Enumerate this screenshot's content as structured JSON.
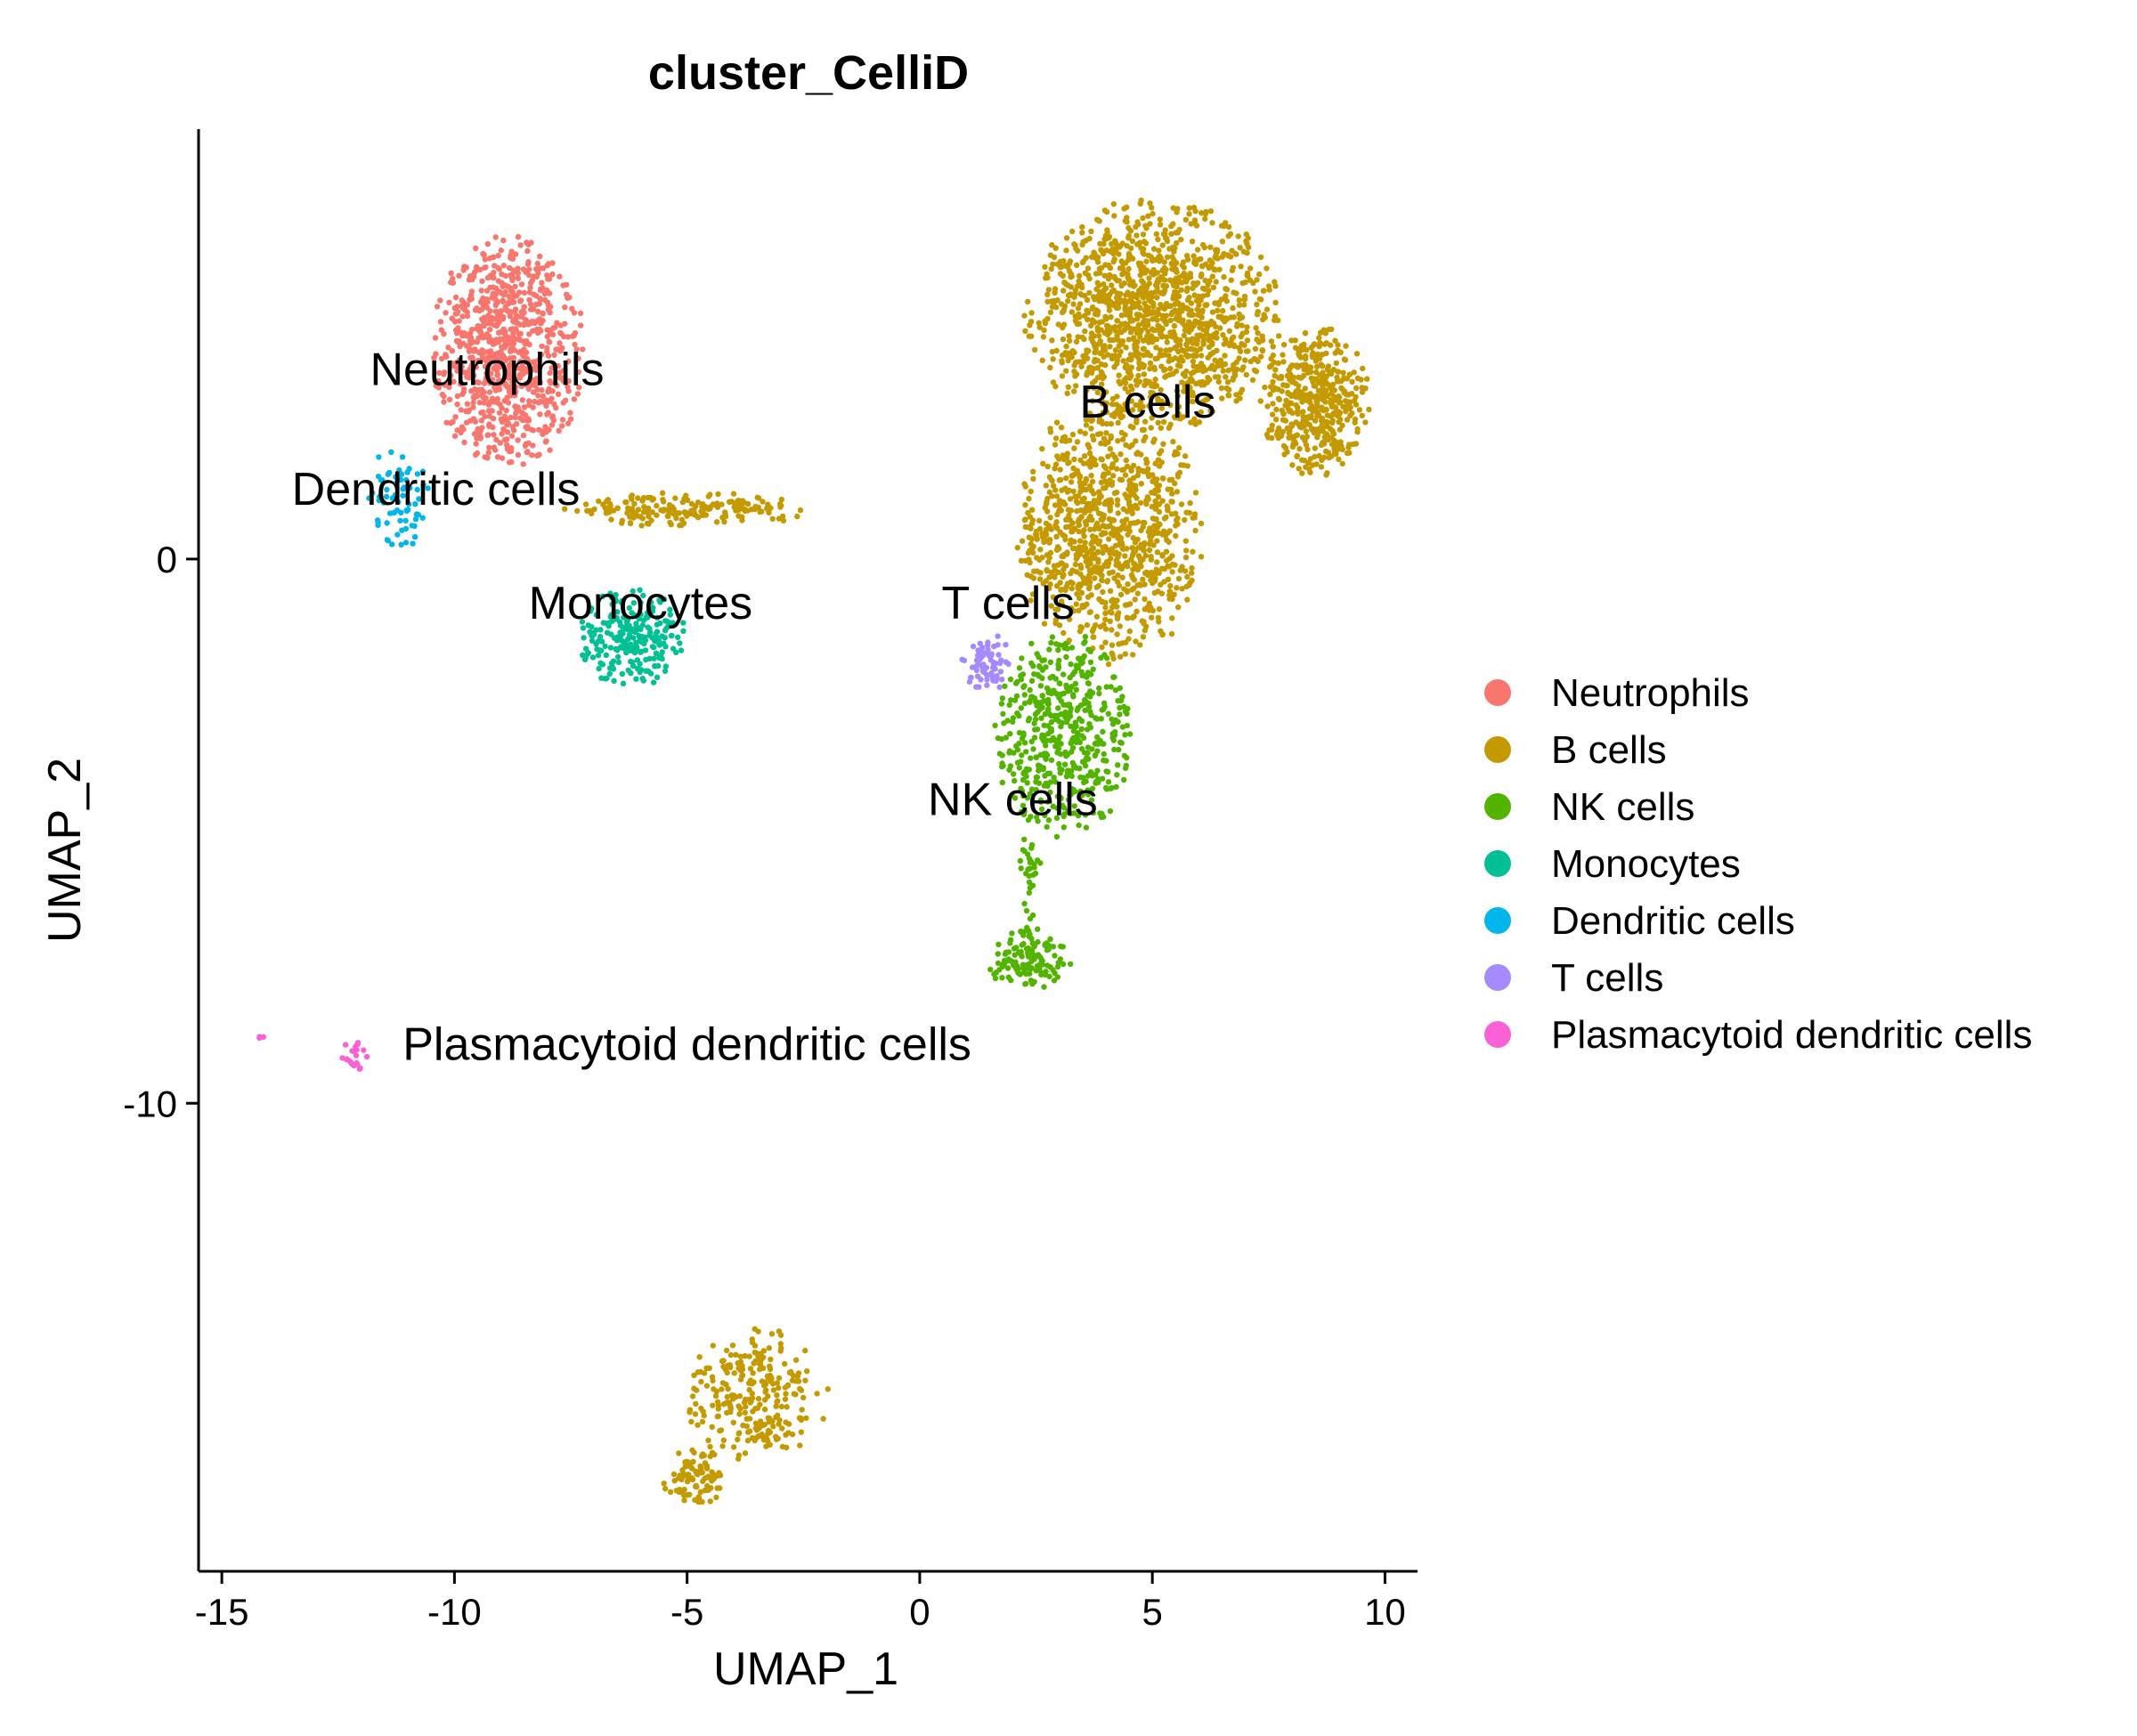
{
  "chart_data": {
    "type": "scatter",
    "title": "cluster_CelliD",
    "xlabel": "UMAP_1",
    "ylabel": "UMAP_2",
    "xlim": [
      -15.5,
      10.7
    ],
    "ylim": [
      -18.6,
      7.9
    ],
    "xticks": [
      -15,
      -10,
      -5,
      0,
      5,
      10
    ],
    "xtick_labels": [
      "-15",
      "-10",
      "-5",
      "0",
      "5",
      "10"
    ],
    "yticks": [
      0,
      -10
    ],
    "ytick_labels": [
      "0",
      "-10"
    ],
    "grid": false,
    "legend_position": "right",
    "point_style": "small dots",
    "series": [
      {
        "name": "Neutrophils",
        "color": "#F8766D",
        "cluster_regions": [
          {
            "x": [
              -10.4,
              -7.3
            ],
            "y": [
              1.8,
              5.8
            ],
            "n": 850
          }
        ],
        "label_at": [
          -9.3,
          3.2
        ]
      },
      {
        "name": "B cells",
        "color": "#C49A00",
        "cluster_regions": [
          {
            "x": [
              2.4,
              7.6
            ],
            "y": [
              2.5,
              6.5
            ],
            "n": 1300
          },
          {
            "x": [
              7.4,
              9.6
            ],
            "y": [
              1.6,
              4.2
            ],
            "n": 450
          },
          {
            "x": [
              2.2,
              6.0
            ],
            "y": [
              -1.8,
              2.8
            ],
            "n": 950
          },
          {
            "x": [
              -7.5,
              -2.5
            ],
            "y": [
              0.6,
              1.2
            ],
            "n": 180
          },
          {
            "x": [
              -5.0,
              -2.0
            ],
            "y": [
              -16.5,
              -14.2
            ],
            "n": 260
          },
          {
            "x": [
              -5.5,
              -4.2
            ],
            "y": [
              -17.4,
              -16.3
            ],
            "n": 90
          }
        ],
        "label_at": [
          4.9,
          2.6
        ]
      },
      {
        "name": "NK cells",
        "color": "#53B400",
        "cluster_regions": [
          {
            "x": [
              1.7,
              4.5
            ],
            "y": [
              -5.0,
              -1.4
            ],
            "n": 500
          },
          {
            "x": [
              1.5,
              3.2
            ],
            "y": [
              -7.9,
              -6.8
            ],
            "n": 130
          },
          {
            "x": [
              2.1,
              2.6
            ],
            "y": [
              -6.8,
              -5.0
            ],
            "n": 30
          }
        ],
        "label_at": [
          2.0,
          -4.7
        ]
      },
      {
        "name": "Monocytes",
        "color": "#00C094",
        "cluster_regions": [
          {
            "x": [
              -7.3,
              -5.1
            ],
            "y": [
              -2.3,
              -0.6
            ],
            "n": 240
          }
        ],
        "label_at": [
          -6.0,
          -1.1
        ]
      },
      {
        "name": "Dendritic cells",
        "color": "#00B6EB",
        "cluster_regions": [
          {
            "x": [
              -11.9,
              -10.6
            ],
            "y": [
              0.2,
              2.0
            ],
            "n": 70
          }
        ],
        "label_at": [
          -10.4,
          1.0
        ]
      },
      {
        "name": "T cells",
        "color": "#A58AFF",
        "cluster_regions": [
          {
            "x": [
              0.9,
              2.0
            ],
            "y": [
              -2.4,
              -1.4
            ],
            "n": 70
          }
        ],
        "label_at": [
          1.9,
          -1.1
        ]
      },
      {
        "name": "Plasmacytoid dendritic cells",
        "color": "#FB61D7",
        "cluster_regions": [
          {
            "x": [
              -12.4,
              -11.8
            ],
            "y": [
              -9.5,
              -8.8
            ],
            "n": 22
          },
          {
            "x": [
              -14.3,
              -14.1
            ],
            "y": [
              -8.9,
              -8.7
            ],
            "n": 3
          }
        ],
        "label_at": [
          -5.0,
          -9.2
        ]
      }
    ]
  }
}
